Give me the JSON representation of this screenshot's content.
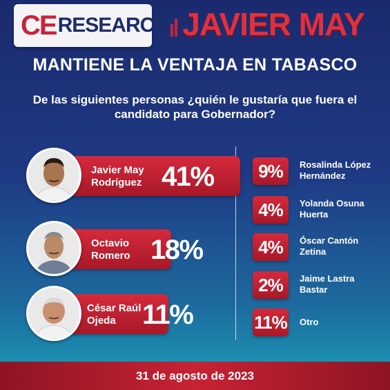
{
  "header": {
    "logo_ce": "CE",
    "logo_research": "RESEARCH",
    "title": "JAVIER MAY"
  },
  "subtitle": "MANTIENE LA VENTAJA EN TABASCO",
  "question": "De las siguientes personas ¿quién le gustaría que fuera el candidato para Gobernador?",
  "candidates": [
    {
      "name_line1": "Javier May",
      "name_line2": "Rodríguez",
      "percent": "41%"
    },
    {
      "name_line1": "Octavio",
      "name_line2": "Romero",
      "percent": "18%"
    },
    {
      "name_line1": "César Raúl",
      "name_line2": "Ojeda",
      "percent": "11%"
    }
  ],
  "others": [
    {
      "percent": "9%",
      "name_line1": "Rosalinda López",
      "name_line2": "Hernández"
    },
    {
      "percent": "4%",
      "name_line1": "Yolanda Osuna",
      "name_line2": "Huerta"
    },
    {
      "percent": "4%",
      "name_line1": "Óscar Cantón",
      "name_line2": "Zetina"
    },
    {
      "percent": "2%",
      "name_line1": "Jaime Lastra",
      "name_line2": "Bastar"
    },
    {
      "percent": "11%",
      "name_line1": "Otro",
      "name_line2": ""
    }
  ],
  "footer": {
    "date": "31 de agosto de 2023"
  },
  "colors": {
    "accent_red": "#c8233a",
    "navy": "#1c2d6b"
  }
}
